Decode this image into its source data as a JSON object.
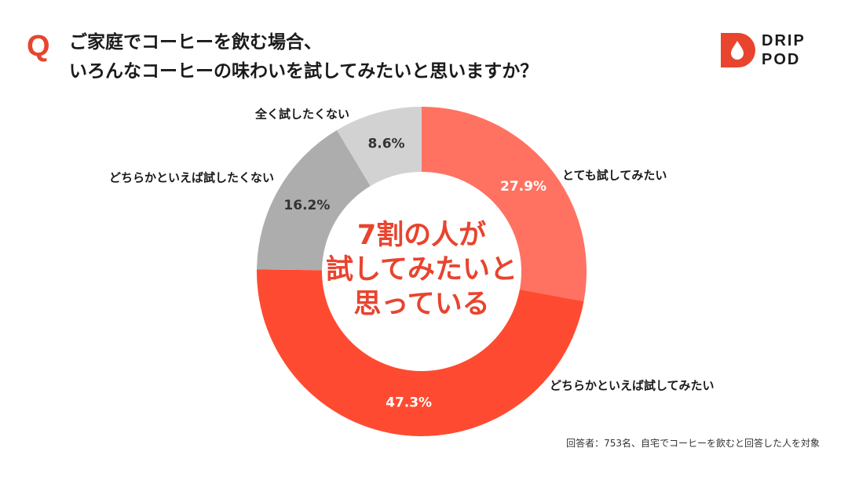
{
  "header": {
    "q_mark": "Q",
    "title_lines": [
      "ご家庭でコーヒーを飲む場合、",
      "いろんなコーヒーの味わいを試してみたいと思いますか？"
    ]
  },
  "logo": {
    "line1": "DRIP",
    "line2": "POD"
  },
  "chart_data": {
    "type": "pie",
    "subtype": "donut",
    "title": "ご家庭でコーヒーを飲む場合、いろんなコーヒーの味わいを試してみたいと思いますか？",
    "slices": [
      {
        "label": "とても試してみたい",
        "value": 27.9,
        "display": "27.9%",
        "color": "#ff7262",
        "text_color": "#ffffff"
      },
      {
        "label": "どちらかといえば試してみたい",
        "value": 47.3,
        "display": "47.3%",
        "color": "#ff4a32",
        "text_color": "#ffffff"
      },
      {
        "label": "どちらかといえば試したくない",
        "value": 16.2,
        "display": "16.2%",
        "color": "#adadad",
        "text_color": "#333333"
      },
      {
        "label": "全く試したくない",
        "value": 8.6,
        "display": "8.6%",
        "color": "#d2d2d2",
        "text_color": "#333333"
      }
    ],
    "center_text": [
      "7割の人が",
      "試してみたいと",
      "思っている"
    ]
  },
  "footnote": "回答者：753名、自宅でコーヒーを飲むと回答した人を対象"
}
